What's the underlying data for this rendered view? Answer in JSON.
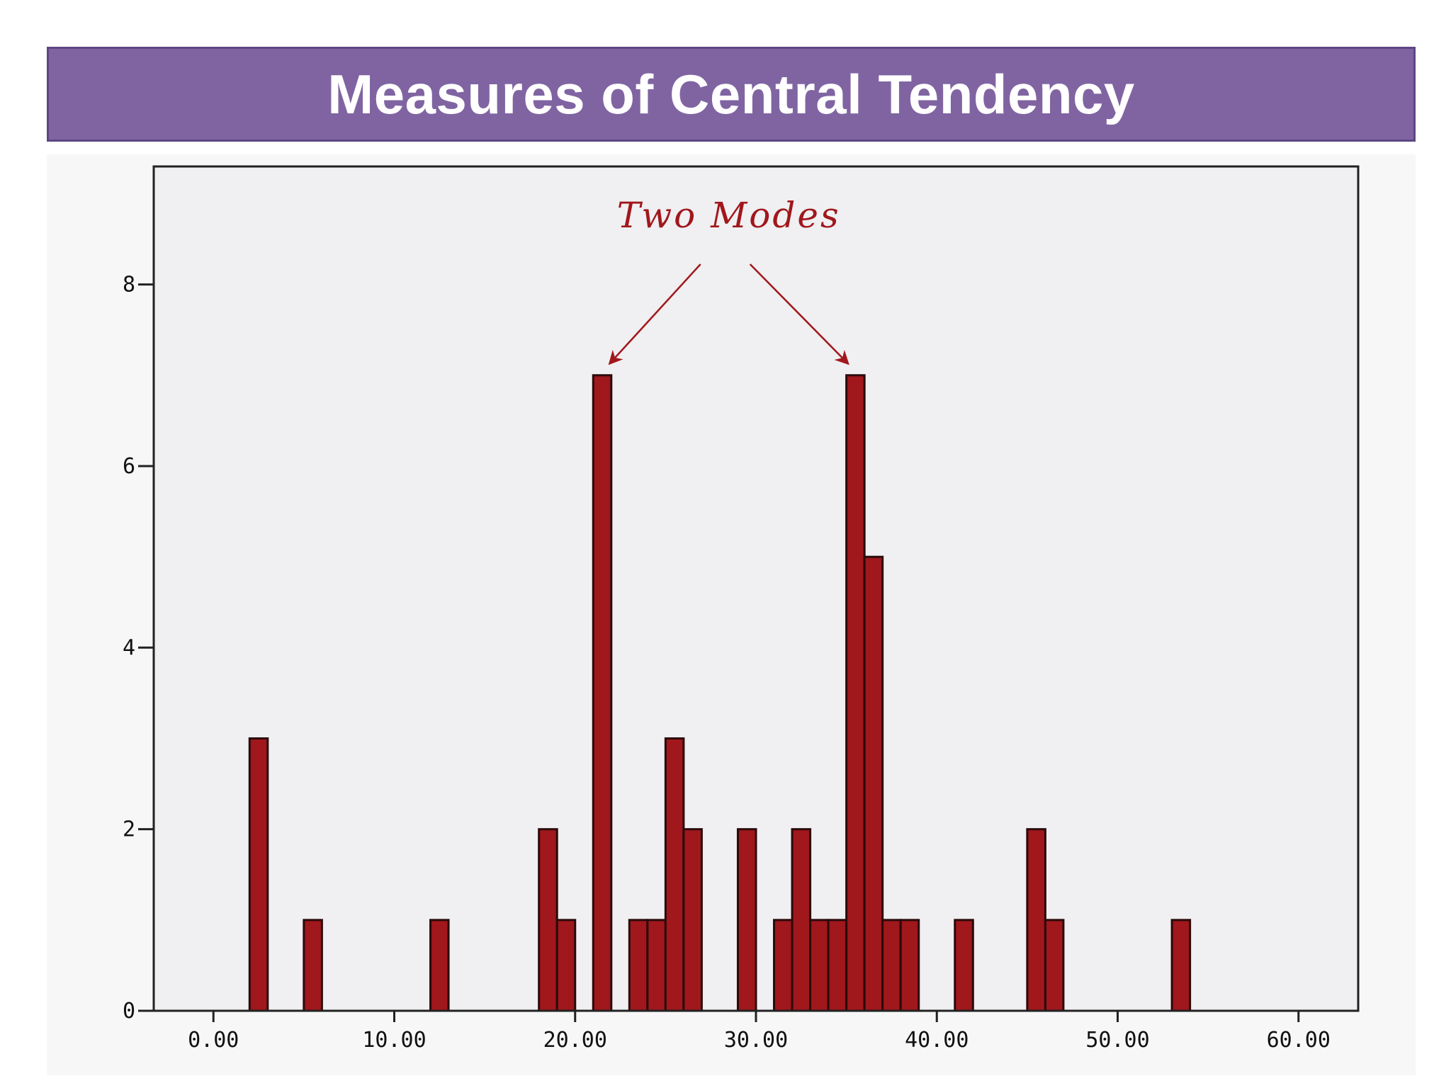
{
  "slide": {
    "title": "Measures of Central Tendency"
  },
  "colors": {
    "banner": "#8064a2",
    "title_text": "#ffffff",
    "plot_background": "#f0eff1",
    "bar_fill": "#a0171c",
    "bar_stroke": "#2a0a0a",
    "annotation": "#a0171c"
  },
  "chart_data": {
    "type": "bar",
    "title": "",
    "xlabel": "",
    "ylabel": "",
    "xlim": [
      -3.3,
      63.3
    ],
    "ylim": [
      0,
      9.3
    ],
    "grid": false,
    "x_ticks": [
      {
        "value": 0,
        "label": "0.00"
      },
      {
        "value": 10,
        "label": "10.00"
      },
      {
        "value": 20,
        "label": "20.00"
      },
      {
        "value": 30,
        "label": "30.00"
      },
      {
        "value": 40,
        "label": "40.00"
      },
      {
        "value": 50,
        "label": "50.00"
      },
      {
        "value": 60,
        "label": "60.00"
      }
    ],
    "y_ticks": [
      {
        "value": 0,
        "label": "0"
      },
      {
        "value": 2,
        "label": "2"
      },
      {
        "value": 4,
        "label": "4"
      },
      {
        "value": 6,
        "label": "6"
      },
      {
        "value": 8,
        "label": "8"
      }
    ],
    "bins": [
      {
        "start": 2.0,
        "end": 3.0,
        "count": 3
      },
      {
        "start": 5.0,
        "end": 6.0,
        "count": 1
      },
      {
        "start": 12.0,
        "end": 13.0,
        "count": 1
      },
      {
        "start": 18.0,
        "end": 19.0,
        "count": 2
      },
      {
        "start": 19.0,
        "end": 20.0,
        "count": 1
      },
      {
        "start": 21.0,
        "end": 22.0,
        "count": 7
      },
      {
        "start": 23.0,
        "end": 24.0,
        "count": 1
      },
      {
        "start": 24.0,
        "end": 25.0,
        "count": 1
      },
      {
        "start": 25.0,
        "end": 26.0,
        "count": 3
      },
      {
        "start": 26.0,
        "end": 27.0,
        "count": 2
      },
      {
        "start": 29.0,
        "end": 30.0,
        "count": 2
      },
      {
        "start": 31.0,
        "end": 32.0,
        "count": 1
      },
      {
        "start": 32.0,
        "end": 33.0,
        "count": 2
      },
      {
        "start": 33.0,
        "end": 34.0,
        "count": 1
      },
      {
        "start": 34.0,
        "end": 35.0,
        "count": 1
      },
      {
        "start": 35.0,
        "end": 36.0,
        "count": 7
      },
      {
        "start": 36.0,
        "end": 37.0,
        "count": 5
      },
      {
        "start": 37.0,
        "end": 38.0,
        "count": 1
      },
      {
        "start": 38.0,
        "end": 39.0,
        "count": 1
      },
      {
        "start": 41.0,
        "end": 42.0,
        "count": 1
      },
      {
        "start": 45.0,
        "end": 46.0,
        "count": 2
      },
      {
        "start": 46.0,
        "end": 47.0,
        "count": 1
      },
      {
        "start": 53.0,
        "end": 54.0,
        "count": 1
      }
    ],
    "annotation": {
      "text": "Two Modes",
      "points_to": [
        {
          "x": 21.5,
          "y": 7
        },
        {
          "x": 35.5,
          "y": 7
        }
      ]
    }
  }
}
